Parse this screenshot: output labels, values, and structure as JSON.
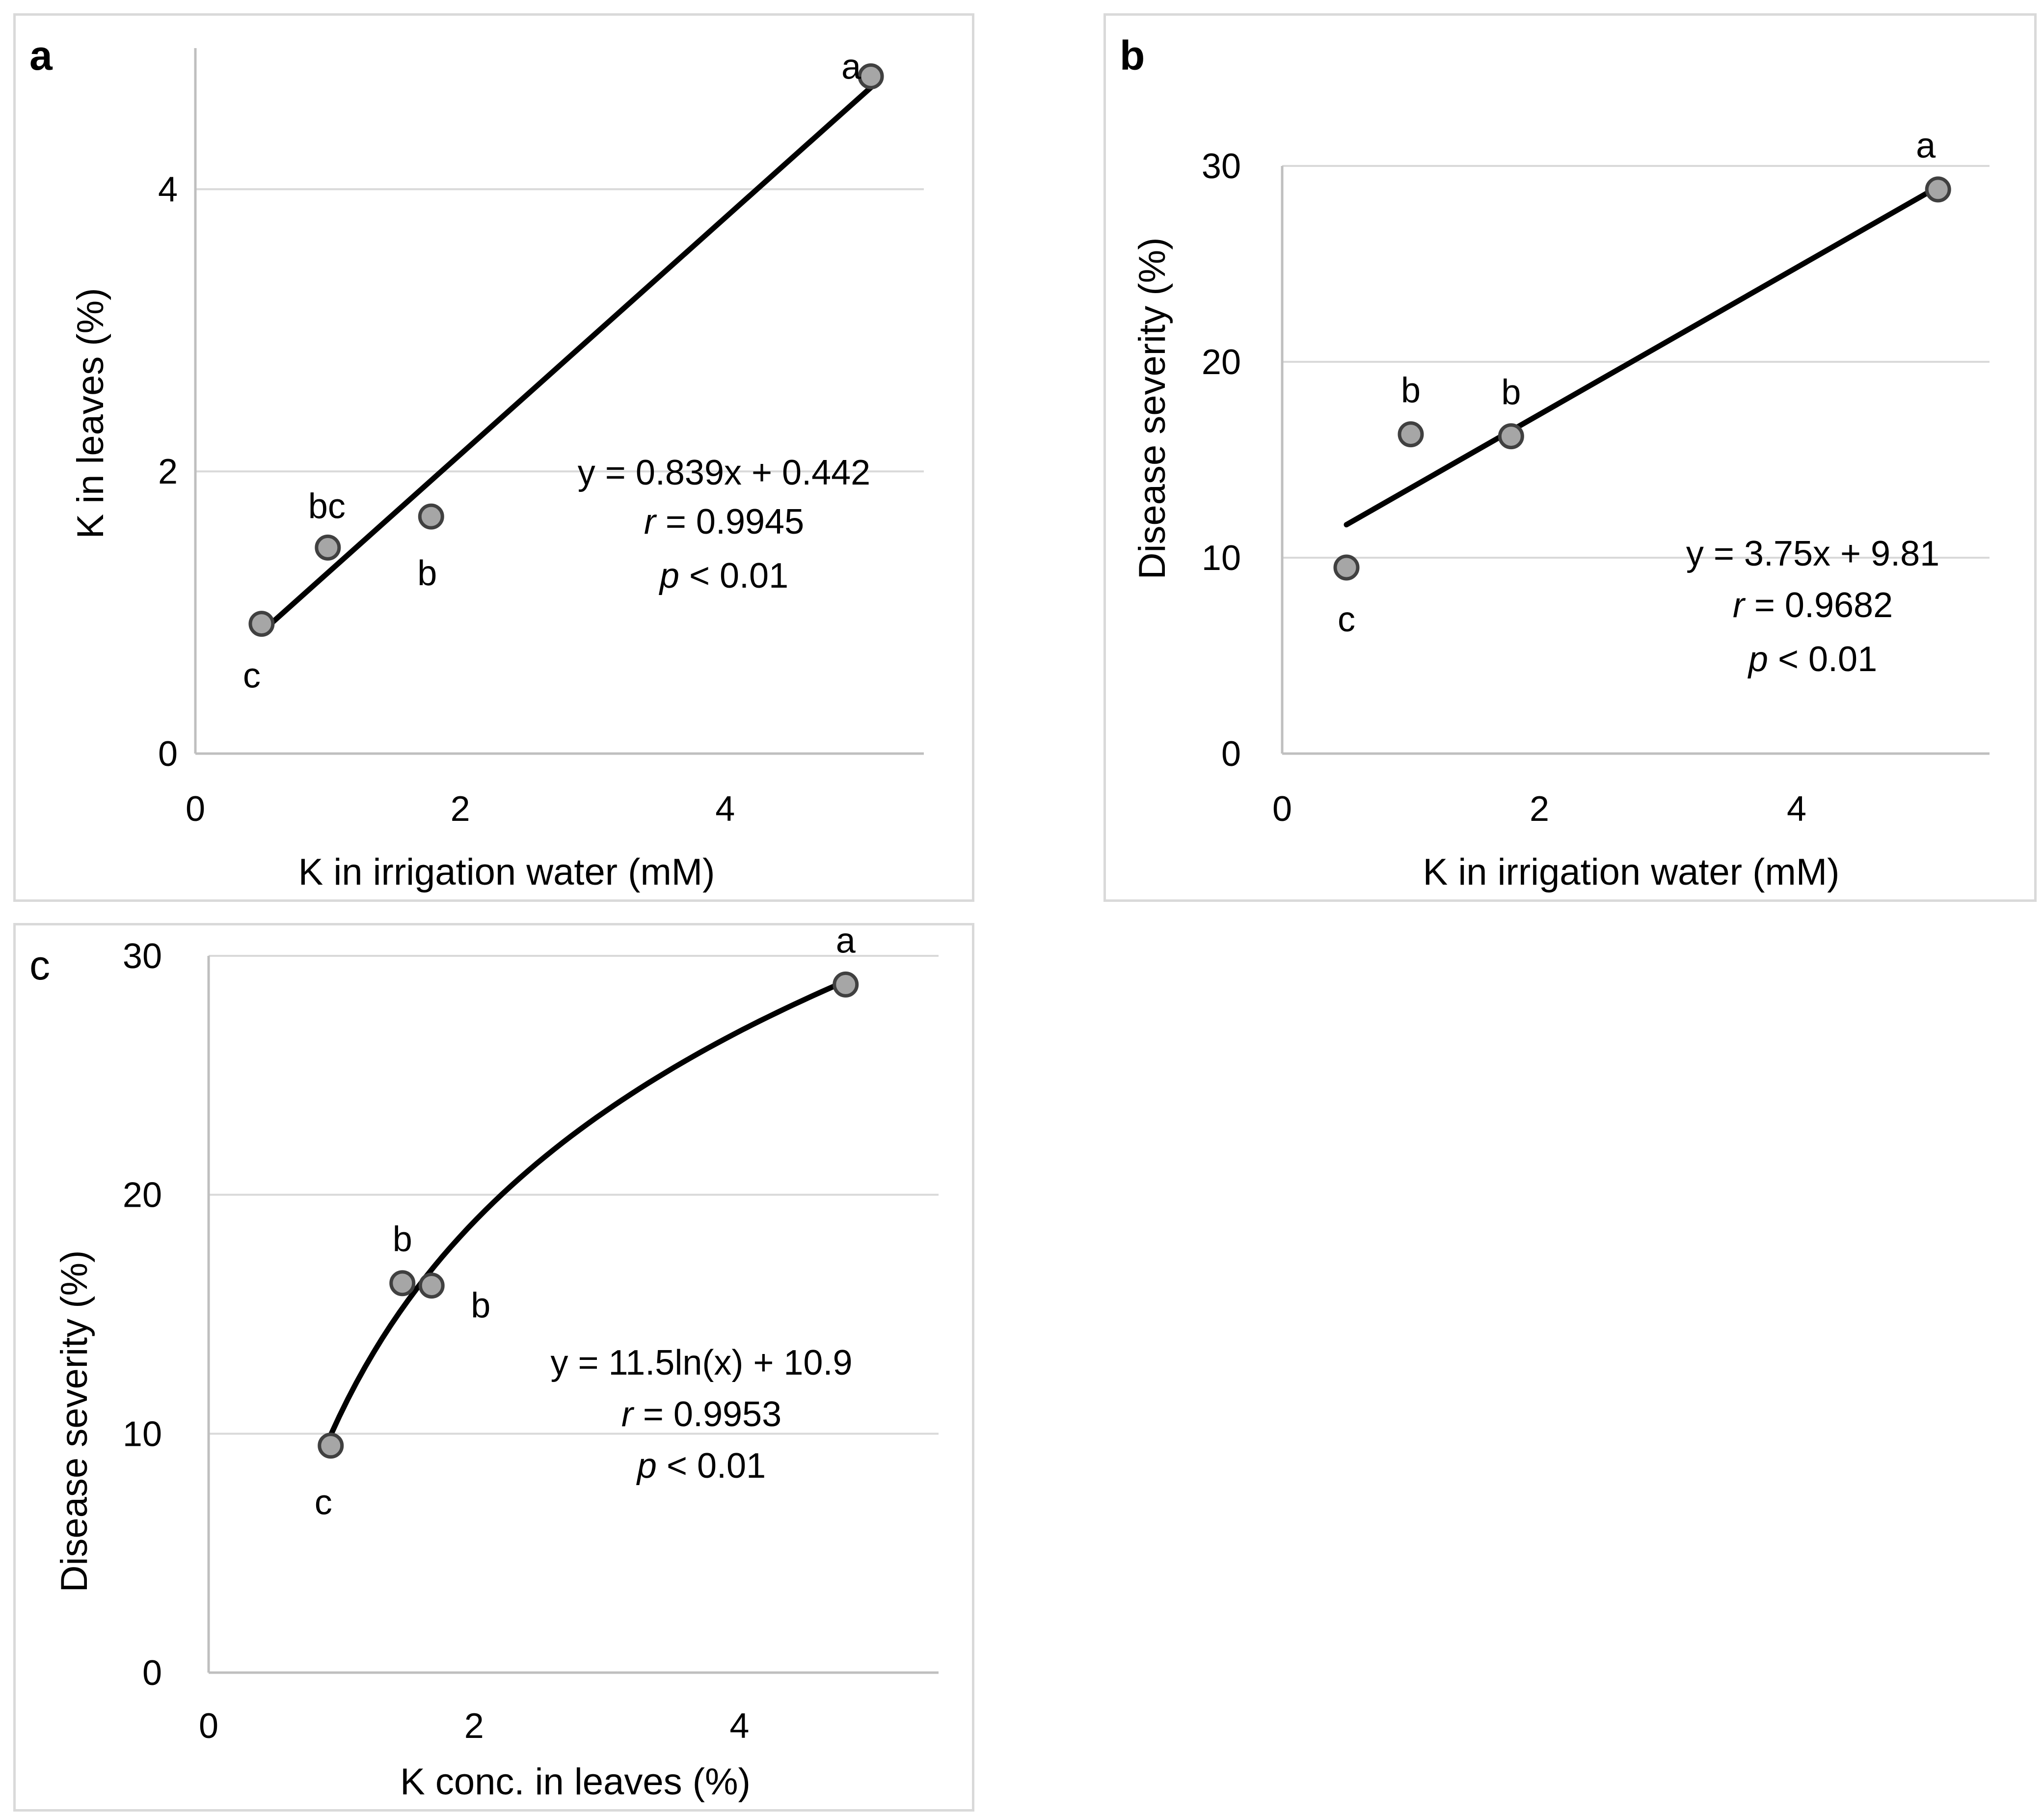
{
  "chart_data": [
    {
      "panel": "a",
      "type": "scatter",
      "title": "",
      "xlabel": "K in irrigation water (mM)",
      "ylabel": "K in leaves (%)",
      "xlim": [
        0,
        5.5
      ],
      "ylim": [
        0,
        5
      ],
      "xticks": [
        "0",
        "2",
        "4"
      ],
      "yticks": [
        "0",
        "2",
        "4"
      ],
      "points": [
        {
          "x": 0.5,
          "y": 0.92,
          "label": "c"
        },
        {
          "x": 1.0,
          "y": 1.46,
          "label": "bc"
        },
        {
          "x": 1.78,
          "y": 1.68,
          "label": "b"
        },
        {
          "x": 5.1,
          "y": 4.8,
          "label": "a"
        }
      ],
      "fit": {
        "kind": "linear",
        "slope": 0.839,
        "intercept": 0.442,
        "x_range": [
          0.5,
          5.1
        ]
      },
      "equation": {
        "eq": "y = 0.839x + 0.442",
        "r_value": "= 0.9945",
        "p_value": "< 0.01"
      },
      "grid": true
    },
    {
      "panel": "b",
      "type": "scatter",
      "title": "",
      "xlabel": "K in irrigation water (mM)",
      "ylabel": "Disease severity (%)",
      "xlim": [
        0,
        5.5
      ],
      "ylim": [
        0,
        30
      ],
      "xticks": [
        "0",
        "2",
        "4"
      ],
      "yticks": [
        "0",
        "10",
        "20",
        "30"
      ],
      "points": [
        {
          "x": 0.5,
          "y": 9.5,
          "label": "c"
        },
        {
          "x": 1.0,
          "y": 16.3,
          "label": "b"
        },
        {
          "x": 1.78,
          "y": 16.2,
          "label": "b"
        },
        {
          "x": 5.1,
          "y": 28.8,
          "label": "a"
        }
      ],
      "fit": {
        "kind": "linear",
        "slope": 3.75,
        "intercept": 9.81,
        "x_range": [
          0.5,
          5.1
        ]
      },
      "equation": {
        "eq": "y = 3.75x + 9.81",
        "r_value": "= 0.9682",
        "p_value": "< 0.01"
      },
      "grid": true
    },
    {
      "panel": "c",
      "type": "scatter",
      "title": "",
      "xlabel": "K conc. in leaves (%)",
      "ylabel": "Disease severity (%)",
      "xlim": [
        0,
        5.5
      ],
      "ylim": [
        0,
        30
      ],
      "xticks": [
        "0",
        "2",
        "4"
      ],
      "yticks": [
        "0",
        "10",
        "20",
        "30"
      ],
      "points": [
        {
          "x": 0.92,
          "y": 9.5,
          "label": "c"
        },
        {
          "x": 1.46,
          "y": 16.3,
          "label": "b"
        },
        {
          "x": 1.68,
          "y": 16.2,
          "label": "b"
        },
        {
          "x": 4.8,
          "y": 28.8,
          "label": "a"
        }
      ],
      "fit": {
        "kind": "log",
        "a": 11.5,
        "b": 10.9,
        "x_range": [
          0.92,
          4.8
        ]
      },
      "equation": {
        "eq": "y = 11.5ln(x) + 10.9",
        "r_value": "= 0.9953",
        "p_value": "< 0.01"
      },
      "grid": true
    }
  ],
  "style": {
    "grid_color": "#d9d9d9",
    "axis_color": "#bfbfbf",
    "marker_fill": "#a6a6a6",
    "marker_stroke": "#404040",
    "line_color": "#000000"
  },
  "labels": {
    "panel_a": "a",
    "panel_b": "b",
    "panel_c": "c",
    "r_symbol": "r",
    "p_symbol": "p"
  }
}
